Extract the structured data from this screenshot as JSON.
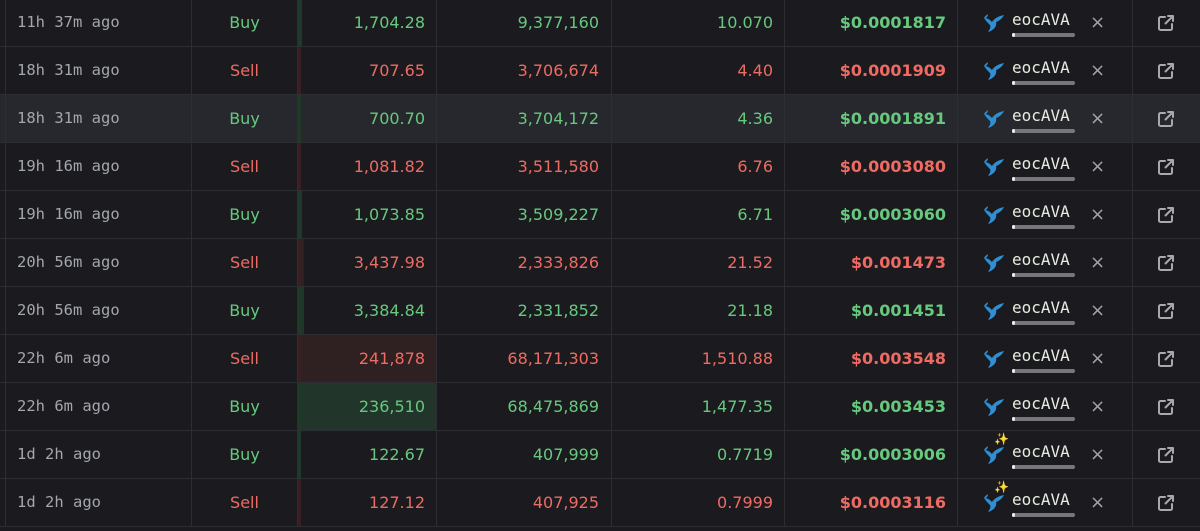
{
  "colors": {
    "buy": "#66c97e",
    "sell": "#ee6b63",
    "background": "#1b1b1f",
    "hover_row": "#27282d",
    "maker_icon": "#2f8fd3"
  },
  "trades": [
    {
      "time": "11h 37m ago",
      "type": "Buy",
      "usd": "1,704.28",
      "tokens": "9,377,160",
      "ava": "10.070",
      "price": "$0.0001817",
      "maker": "eocAVA",
      "maker_icon": "whale-icon",
      "usd_share": 0.01,
      "maker_share": 0.05
    },
    {
      "time": "18h 31m ago",
      "type": "Sell",
      "usd": "707.65",
      "tokens": "3,706,674",
      "ava": "4.40",
      "price": "$0.0001909",
      "maker": "eocAVA",
      "maker_icon": "whale-icon",
      "usd_share": 0.0,
      "maker_share": 0.05
    },
    {
      "time": "18h 31m ago",
      "type": "Buy",
      "usd": "700.70",
      "tokens": "3,704,172",
      "ava": "4.36",
      "price": "$0.0001891",
      "maker": "eocAVA",
      "maker_icon": "whale-icon",
      "usd_share": 0.0,
      "maker_share": 0.05
    },
    {
      "time": "19h 16m ago",
      "type": "Sell",
      "usd": "1,081.82",
      "tokens": "3,511,580",
      "ava": "6.76",
      "price": "$0.0003080",
      "maker": "eocAVA",
      "maker_icon": "whale-icon",
      "usd_share": 0.0,
      "maker_share": 0.05
    },
    {
      "time": "19h 16m ago",
      "type": "Buy",
      "usd": "1,073.85",
      "tokens": "3,509,227",
      "ava": "6.71",
      "price": "$0.0003060",
      "maker": "eocAVA",
      "maker_icon": "whale-icon",
      "usd_share": 0.01,
      "maker_share": 0.05
    },
    {
      "time": "20h 56m ago",
      "type": "Sell",
      "usd": "3,437.98",
      "tokens": "2,333,826",
      "ava": "21.52",
      "price": "$0.001473",
      "maker": "eocAVA",
      "maker_icon": "whale-icon",
      "usd_share": 0.02,
      "maker_share": 0.05
    },
    {
      "time": "20h 56m ago",
      "type": "Buy",
      "usd": "3,384.84",
      "tokens": "2,331,852",
      "ava": "21.18",
      "price": "$0.001451",
      "maker": "eocAVA",
      "maker_icon": "whale-icon",
      "usd_share": 0.02,
      "maker_share": 0.05
    },
    {
      "time": "22h 6m ago",
      "type": "Sell",
      "usd": "241,878",
      "tokens": "68,171,303",
      "ava": "1,510.88",
      "price": "$0.003548",
      "maker": "eocAVA",
      "maker_icon": "whale-icon",
      "usd_share": 1.0,
      "maker_share": 0.05
    },
    {
      "time": "22h 6m ago",
      "type": "Buy",
      "usd": "236,510",
      "tokens": "68,475,869",
      "ava": "1,477.35",
      "price": "$0.003453",
      "maker": "eocAVA",
      "maker_icon": "whale-icon",
      "usd_share": 1.0,
      "maker_share": 0.05
    },
    {
      "time": "1d 2h ago",
      "type": "Buy",
      "usd": "122.67",
      "tokens": "407,999",
      "ava": "0.7719",
      "price": "$0.0003006",
      "maker": "eocAVA",
      "maker_icon": "whale-sparkle-icon",
      "usd_share": 0.0,
      "maker_share": 0.05
    },
    {
      "time": "1d 2h ago",
      "type": "Sell",
      "usd": "127.12",
      "tokens": "407,925",
      "ava": "0.7999",
      "price": "$0.0003116",
      "maker": "eocAVA",
      "maker_icon": "whale-sparkle-icon",
      "usd_share": 0.0,
      "maker_share": 0.05
    }
  ],
  "row_actions": {
    "remove_icon": "×",
    "link_icon": "external-link-icon"
  }
}
